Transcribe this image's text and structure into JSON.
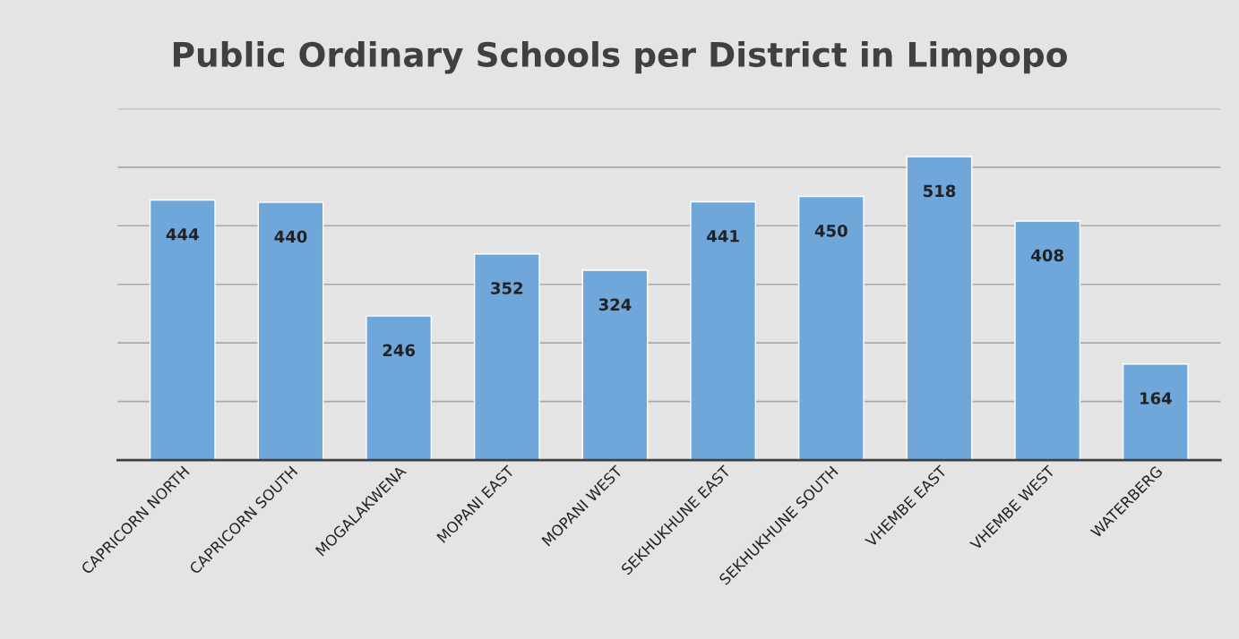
{
  "chart_data": {
    "type": "bar",
    "title": "Public Ordinary Schools per District in Limpopo",
    "categories": [
      "CAPRICORN NORTH",
      "CAPRICORN SOUTH",
      "MOGALAKWENA",
      "MOPANI EAST",
      "MOPANI WEST",
      "SEKHUKHUNE EAST",
      "SEKHUKHUNE SOUTH",
      "VHEMBE EAST",
      "VHEMBE WEST",
      "WATERBERG"
    ],
    "values": [
      444,
      440,
      246,
      352,
      324,
      441,
      450,
      518,
      408,
      164
    ],
    "color": "#6fa7db",
    "ylim": [
      0,
      600
    ],
    "yticks": [
      {
        "value": 0,
        "label": null
      },
      {
        "value": 100,
        "label": null
      },
      {
        "value": 200,
        "label": null
      },
      {
        "value": 300,
        "label": null
      },
      {
        "value": 400,
        "label": null
      },
      {
        "value": 500,
        "label": null
      },
      {
        "value": 600,
        "label": null
      }
    ],
    "tick_labels": "x",
    "grid": "y",
    "data_labels": true
  }
}
